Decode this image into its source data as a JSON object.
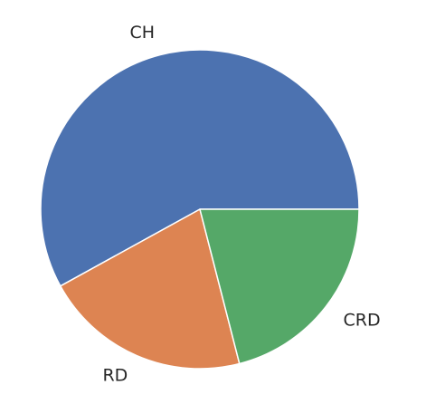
{
  "chart_data": {
    "type": "pie",
    "categories": [
      "CH",
      "RD",
      "CRD"
    ],
    "values": [
      58,
      21,
      21
    ],
    "colors": [
      "#4c72b0",
      "#dd8452",
      "#55a868"
    ],
    "start_angle_deg": 0,
    "direction": "counterclockwise",
    "title": ""
  }
}
